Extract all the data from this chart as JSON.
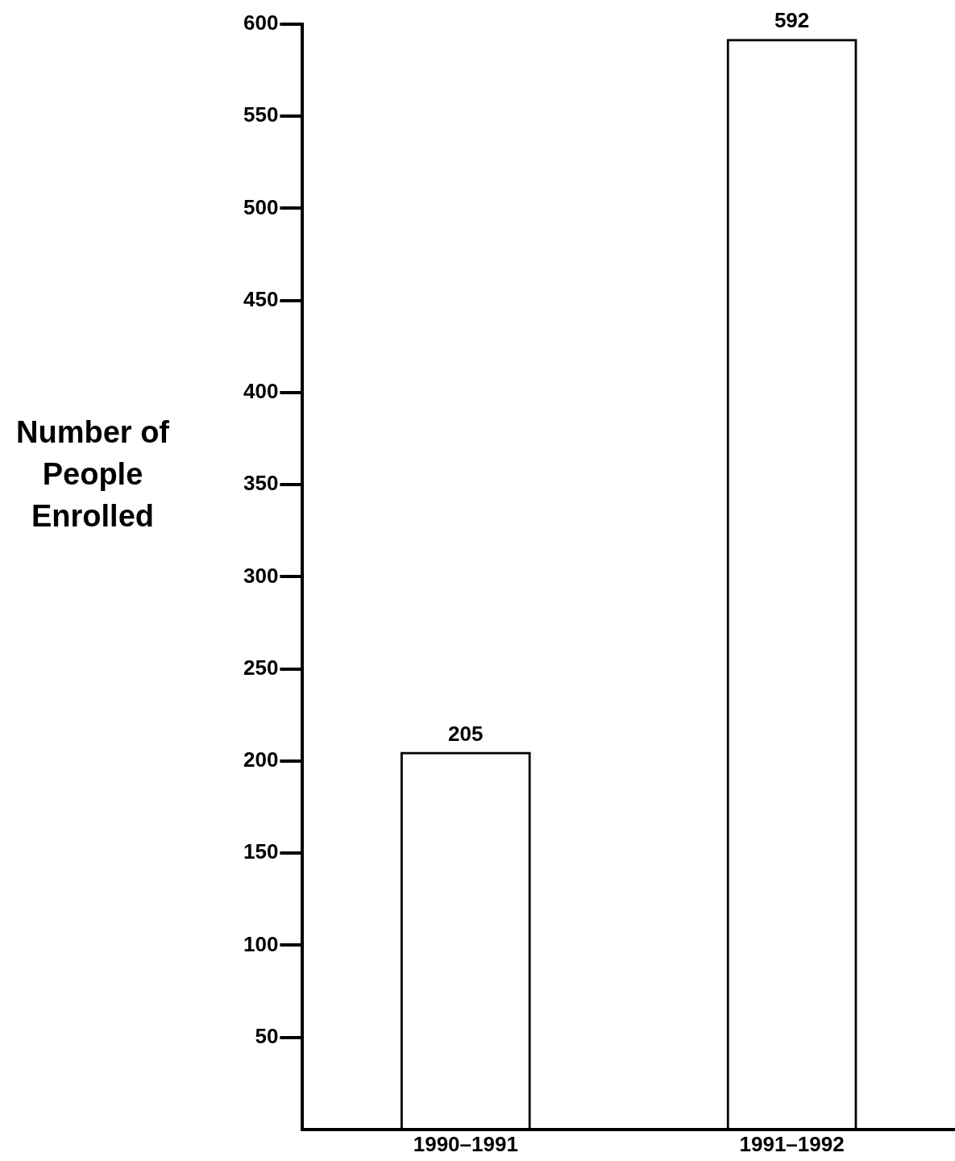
{
  "chart_data": {
    "type": "bar",
    "ylabel": "Number of People Enrolled",
    "categories": [
      "1990–1991",
      "1991–1992"
    ],
    "values": [
      205,
      592
    ],
    "color": "#000000",
    "ylim": [
      0,
      600
    ],
    "yticks": [
      50,
      100,
      150,
      200,
      250,
      300,
      350,
      400,
      450,
      500,
      550,
      600
    ],
    "grid": false,
    "legend": false,
    "data_labels": true
  }
}
